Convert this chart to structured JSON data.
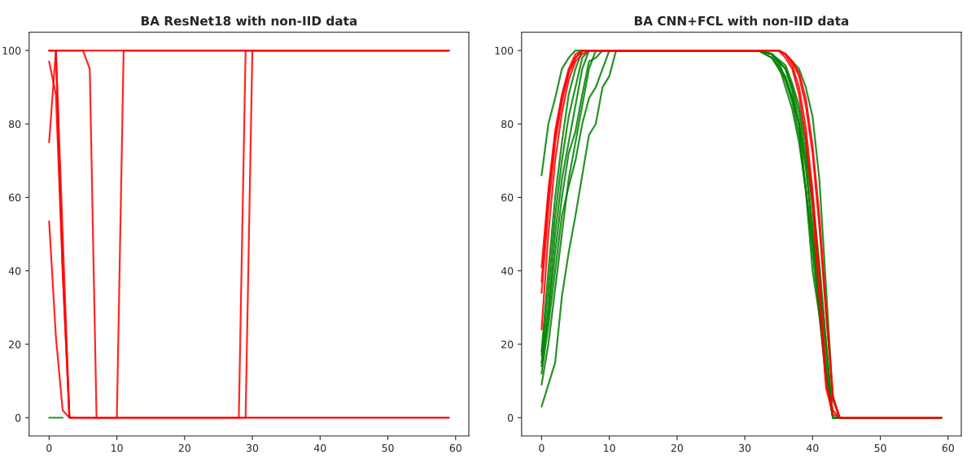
{
  "chart_data": [
    {
      "type": "line",
      "title": "BA ResNet18 with non-IID data",
      "xlim": [
        -2.95,
        61.95
      ],
      "ylim": [
        -5,
        105
      ],
      "xticks": [
        0,
        10,
        20,
        30,
        40,
        50,
        60
      ],
      "yticks": [
        0,
        20,
        40,
        60,
        80,
        100
      ],
      "grid": false,
      "line_style": "solid",
      "series": [
        {
          "color": "#008000",
          "x": [
            0,
            2
          ],
          "values": [
            0,
            0
          ]
        },
        {
          "color": "#ff0000",
          "x": [
            0,
            59
          ],
          "values": [
            100,
            100
          ]
        },
        {
          "color": "#ff0000",
          "x": [
            0,
            1,
            2,
            3,
            10,
            11,
            59
          ],
          "values": [
            53.5,
            22,
            2,
            0,
            0,
            100,
            100
          ]
        },
        {
          "color": "#ff0000",
          "x": [
            0,
            1,
            3,
            28,
            29,
            59
          ],
          "values": [
            75,
            100,
            0,
            0,
            100,
            100
          ]
        },
        {
          "color": "#ff0000",
          "x": [
            0,
            1,
            2,
            3,
            29,
            30,
            59
          ],
          "values": [
            97,
            88,
            40,
            0,
            0,
            100,
            100
          ]
        },
        {
          "color": "#ff0000",
          "x": [
            0,
            5,
            6,
            7,
            59
          ],
          "values": [
            100,
            100,
            95,
            0,
            0
          ]
        },
        {
          "color": "#ff0000",
          "x": [
            0,
            1,
            2,
            3,
            59
          ],
          "values": [
            100,
            100,
            40,
            0,
            0
          ]
        }
      ]
    },
    {
      "type": "line",
      "title": "BA CNN+FCL with non-IID data",
      "xlim": [
        -2.95,
        61.95
      ],
      "ylim": [
        -5,
        105
      ],
      "xticks": [
        0,
        10,
        20,
        30,
        40,
        50,
        60
      ],
      "yticks": [
        0,
        20,
        40,
        60,
        80,
        100
      ],
      "grid": false,
      "line_style": "solid",
      "series": [
        {
          "color": "#008000",
          "x": [
            0,
            1,
            2,
            3,
            4,
            5,
            32,
            35,
            36,
            37,
            38,
            39,
            40,
            41,
            42,
            43,
            44,
            59
          ],
          "values": [
            66,
            80,
            87,
            95,
            98,
            100,
            100,
            100,
            99,
            97,
            95,
            90,
            82,
            65,
            35,
            5,
            0,
            0
          ]
        },
        {
          "color": "#008000",
          "x": [
            0,
            1,
            2,
            3,
            4,
            5,
            6,
            7,
            8,
            9,
            10,
            11,
            32,
            34,
            36,
            37,
            38,
            39,
            40,
            41,
            42,
            43,
            59
          ],
          "values": [
            3,
            9,
            15,
            33,
            45,
            55,
            66,
            77,
            80,
            90,
            93,
            100,
            100,
            99,
            95,
            89,
            80,
            62,
            40,
            28,
            10,
            0,
            0
          ]
        },
        {
          "color": "#008000",
          "x": [
            0,
            1,
            2,
            3,
            4,
            5,
            6,
            7,
            8,
            32,
            34,
            35,
            36,
            37,
            38,
            39,
            40,
            41,
            42,
            43,
            59
          ],
          "values": [
            9,
            20,
            35,
            50,
            65,
            75,
            85,
            95,
            100,
            100,
            99,
            97,
            92,
            86,
            77,
            62,
            48,
            30,
            12,
            0,
            0
          ]
        },
        {
          "color": "#008000",
          "x": [
            0,
            1,
            2,
            3,
            4,
            5,
            6,
            7,
            8,
            9,
            10,
            32,
            34,
            36,
            37,
            38,
            39,
            40,
            41,
            42,
            43,
            59
          ],
          "values": [
            12,
            25,
            40,
            55,
            63,
            70,
            80,
            87,
            90,
            95,
            100,
            100,
            98,
            93,
            87,
            80,
            70,
            52,
            35,
            15,
            0,
            0
          ]
        },
        {
          "color": "#008000",
          "x": [
            0,
            1,
            2,
            3,
            4,
            5,
            6,
            7,
            32,
            34,
            36,
            37,
            38,
            39,
            40,
            41,
            42,
            43,
            59
          ],
          "values": [
            15,
            30,
            50,
            65,
            75,
            85,
            95,
            100,
            100,
            99,
            95,
            90,
            83,
            72,
            58,
            40,
            20,
            0,
            0
          ]
        },
        {
          "color": "#008000",
          "x": [
            0,
            1,
            2,
            3,
            4,
            5,
            6,
            7,
            32,
            34,
            35,
            36,
            37,
            38,
            39,
            40,
            41,
            42,
            43,
            59
          ],
          "values": [
            17,
            35,
            55,
            70,
            82,
            90,
            98,
            100,
            100,
            99,
            96,
            90,
            84,
            75,
            62,
            45,
            28,
            12,
            0,
            0
          ]
        },
        {
          "color": "#008000",
          "x": [
            0,
            1,
            2,
            3,
            4,
            5,
            6,
            32,
            34,
            36,
            37,
            38,
            39,
            40,
            41,
            42,
            43,
            59
          ],
          "values": [
            18,
            40,
            60,
            75,
            88,
            95,
            100,
            100,
            98,
            92,
            87,
            80,
            68,
            50,
            30,
            12,
            0,
            0
          ]
        },
        {
          "color": "#008000",
          "x": [
            0,
            1,
            2,
            3,
            4,
            5,
            6,
            7,
            8,
            9,
            32,
            34,
            36,
            37,
            38,
            39,
            40,
            41,
            42,
            43,
            59
          ],
          "values": [
            14,
            28,
            45,
            60,
            72,
            78,
            88,
            97,
            98,
            100,
            100,
            99,
            96,
            91,
            85,
            75,
            60,
            42,
            20,
            0,
            0
          ]
        },
        {
          "color": "#ff0000",
          "x": [
            0,
            1,
            2,
            3,
            4,
            5,
            6,
            35,
            36,
            37,
            38,
            39,
            40,
            41,
            42,
            43,
            44,
            59
          ],
          "values": [
            41,
            62,
            78,
            88,
            95,
            99,
            100,
            100,
            99,
            97,
            93,
            85,
            72,
            52,
            28,
            5,
            0,
            0
          ]
        },
        {
          "color": "#ff0000",
          "x": [
            0,
            1,
            2,
            3,
            4,
            5,
            6,
            7,
            35,
            36,
            37,
            38,
            39,
            40,
            41,
            42,
            43,
            44,
            59
          ],
          "values": [
            24,
            50,
            70,
            83,
            92,
            97,
            99,
            100,
            100,
            98,
            95,
            88,
            76,
            58,
            32,
            8,
            1,
            0,
            0
          ]
        },
        {
          "color": "#ff0000",
          "x": [
            0,
            1,
            2,
            3,
            4,
            5,
            6,
            7,
            35,
            36,
            37,
            38,
            39,
            40,
            41,
            42,
            43,
            44,
            59
          ],
          "values": [
            34,
            57,
            75,
            86,
            94,
            98,
            100,
            100,
            100,
            99,
            96,
            90,
            79,
            62,
            38,
            10,
            2,
            0,
            0
          ]
        },
        {
          "color": "#ff0000",
          "x": [
            0,
            1,
            2,
            3,
            4,
            5,
            6,
            35,
            36,
            37,
            38,
            39,
            40,
            41,
            42,
            43,
            44,
            59
          ],
          "values": [
            37,
            60,
            77,
            87,
            94,
            98,
            100,
            100,
            99,
            97,
            94,
            87,
            74,
            55,
            30,
            6,
            0,
            0
          ]
        }
      ]
    }
  ]
}
